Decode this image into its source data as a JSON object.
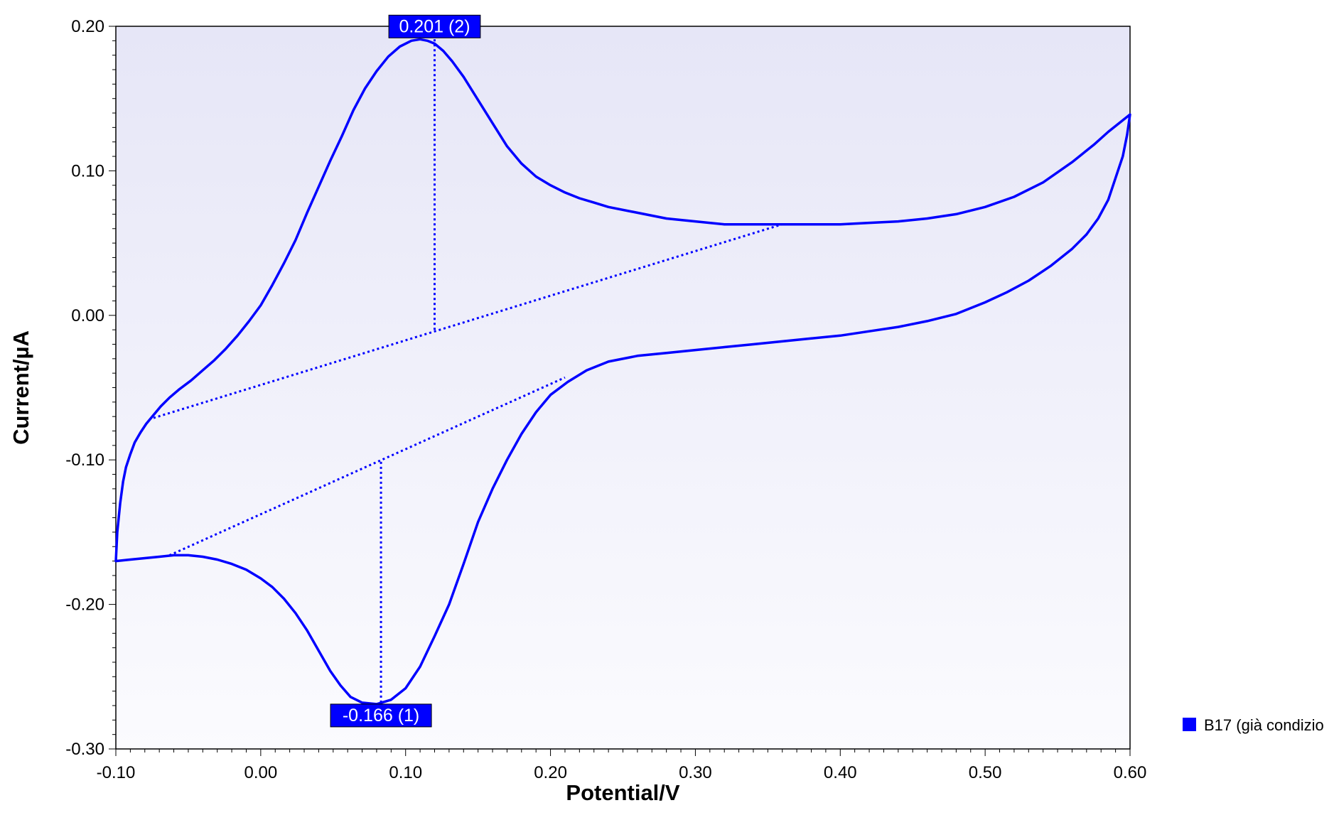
{
  "chart_data": {
    "type": "line",
    "xlabel": "Potential/V",
    "ylabel": "Current/µA",
    "xlim": [
      -0.1,
      0.6
    ],
    "ylim": [
      -0.3,
      0.2
    ],
    "x_ticks": [
      "-0.10",
      "0.00",
      "0.10",
      "0.20",
      "0.30",
      "0.40",
      "0.50",
      "0.60"
    ],
    "y_ticks": [
      "0.20",
      "0.10",
      "0.00",
      "-0.10",
      "-0.20",
      "-0.30"
    ],
    "x_tick_values": [
      -0.1,
      0.0,
      0.1,
      0.2,
      0.3,
      0.4,
      0.5,
      0.6
    ],
    "y_tick_values": [
      0.2,
      0.1,
      0.0,
      -0.1,
      -0.2,
      -0.3
    ],
    "grid": false,
    "colors": {
      "series": "#0000ff",
      "plot_bg_top": "#e6e6f7",
      "plot_bg_bottom": "#fbfbfe",
      "annotation_bg": "#0000ff"
    },
    "legend": {
      "position": "right",
      "entries": [
        {
          "label": "B17 (già condizio"
        }
      ]
    },
    "series": [
      {
        "x": [
          -0.1,
          -0.099,
          -0.097,
          -0.095,
          -0.093,
          -0.09,
          -0.087,
          -0.083,
          -0.079,
          -0.074,
          -0.069,
          -0.063,
          -0.056,
          -0.048,
          -0.04,
          -0.032,
          -0.024,
          -0.016,
          -0.008,
          0.0,
          0.008,
          0.016,
          0.024,
          0.032,
          0.04,
          0.048,
          0.056,
          0.064,
          0.072,
          0.08,
          0.088,
          0.096,
          0.104,
          0.11,
          0.115,
          0.12,
          0.126,
          0.132,
          0.14,
          0.15,
          0.16,
          0.17,
          0.18,
          0.19,
          0.2,
          0.21,
          0.22,
          0.23,
          0.24,
          0.26,
          0.28,
          0.3,
          0.32,
          0.34,
          0.36,
          0.38,
          0.4,
          0.42,
          0.44,
          0.46,
          0.48,
          0.5,
          0.52,
          0.54,
          0.56,
          0.575,
          0.585,
          0.595,
          0.6,
          0.598,
          0.595,
          0.59,
          0.585,
          0.578,
          0.57,
          0.56,
          0.545,
          0.53,
          0.515,
          0.5,
          0.48,
          0.46,
          0.44,
          0.42,
          0.4,
          0.38,
          0.36,
          0.34,
          0.32,
          0.3,
          0.28,
          0.26,
          0.24,
          0.225,
          0.212,
          0.2,
          0.19,
          0.18,
          0.17,
          0.16,
          0.15,
          0.14,
          0.13,
          0.12,
          0.11,
          0.1,
          0.09,
          0.08,
          0.07,
          0.062,
          0.055,
          0.048,
          0.04,
          0.032,
          0.024,
          0.016,
          0.008,
          0.0,
          -0.01,
          -0.02,
          -0.03,
          -0.04,
          -0.05,
          -0.06,
          -0.07,
          -0.08,
          -0.09,
          -0.1
        ],
        "y": [
          -0.17,
          -0.15,
          -0.13,
          -0.115,
          -0.105,
          -0.096,
          -0.088,
          -0.081,
          -0.075,
          -0.069,
          -0.063,
          -0.057,
          -0.051,
          -0.045,
          -0.038,
          -0.031,
          -0.023,
          -0.014,
          -0.004,
          0.007,
          0.021,
          0.036,
          0.052,
          0.071,
          0.089,
          0.107,
          0.124,
          0.142,
          0.157,
          0.169,
          0.179,
          0.186,
          0.19,
          0.191,
          0.19,
          0.188,
          0.183,
          0.176,
          0.165,
          0.149,
          0.133,
          0.117,
          0.105,
          0.096,
          0.09,
          0.085,
          0.081,
          0.078,
          0.075,
          0.071,
          0.067,
          0.065,
          0.063,
          0.063,
          0.063,
          0.063,
          0.063,
          0.064,
          0.065,
          0.067,
          0.07,
          0.075,
          0.082,
          0.092,
          0.106,
          0.118,
          0.127,
          0.135,
          0.139,
          0.125,
          0.11,
          0.095,
          0.08,
          0.067,
          0.056,
          0.046,
          0.034,
          0.024,
          0.016,
          0.009,
          0.001,
          -0.004,
          -0.008,
          -0.011,
          -0.014,
          -0.016,
          -0.018,
          -0.02,
          -0.022,
          -0.024,
          -0.026,
          -0.028,
          -0.032,
          -0.038,
          -0.046,
          -0.055,
          -0.067,
          -0.082,
          -0.1,
          -0.12,
          -0.143,
          -0.172,
          -0.2,
          -0.222,
          -0.243,
          -0.258,
          -0.266,
          -0.269,
          -0.268,
          -0.264,
          -0.256,
          -0.246,
          -0.232,
          -0.218,
          -0.206,
          -0.196,
          -0.188,
          -0.182,
          -0.176,
          -0.172,
          -0.169,
          -0.167,
          -0.166,
          -0.166,
          -0.167,
          -0.168,
          -0.169,
          -0.17
        ]
      }
    ],
    "baselines": [
      {
        "x": [
          -0.074,
          0.36
        ],
        "y": [
          -0.071,
          0.063
        ]
      },
      {
        "x": [
          -0.063,
          0.21
        ],
        "y": [
          -0.166,
          -0.043
        ]
      }
    ],
    "drop_lines": [
      {
        "x": 0.12,
        "y_from": 0.191,
        "y_to": -0.012
      },
      {
        "x": 0.083,
        "y_from": -0.268,
        "y_to": -0.101
      }
    ],
    "annotations": [
      {
        "text": "0.201 (2)",
        "x": 0.12,
        "y": 0.191,
        "anchor": "above"
      },
      {
        "text": "-0.166 (1)",
        "x": 0.083,
        "y": -0.268,
        "anchor": "below"
      }
    ]
  }
}
